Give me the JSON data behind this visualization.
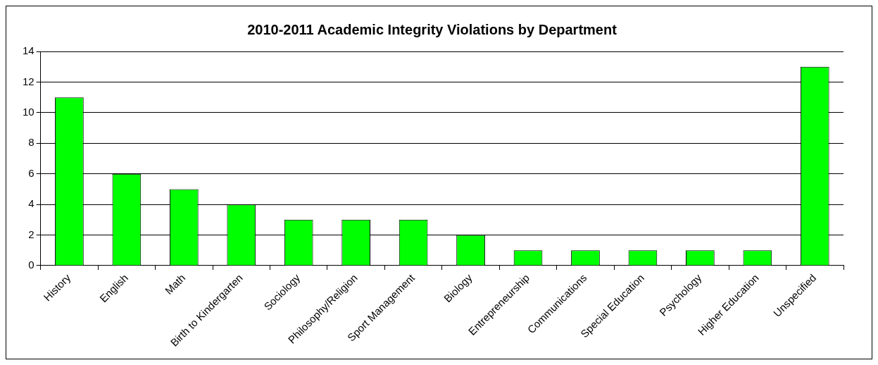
{
  "chart_data": {
    "type": "bar",
    "title": "2010-2011 Academic Integrity Violations by Department",
    "categories": [
      "History",
      "English",
      "Math",
      "Birth to Kindergarten",
      "Sociology",
      "Philosophy/Religion",
      "Sport Management",
      "Biology",
      "Entrepreneurship",
      "Communications",
      "Special Education",
      "Psychology",
      "Higher Education",
      "Unspecified"
    ],
    "values": [
      11,
      6,
      5,
      4,
      3,
      3,
      3,
      2,
      1,
      1,
      1,
      1,
      1,
      13
    ],
    "color": "#00ff00",
    "ylim": [
      0,
      14
    ],
    "yticks": [
      0,
      2,
      4,
      6,
      8,
      10,
      12,
      14
    ],
    "grid": "y",
    "legend": false
  }
}
